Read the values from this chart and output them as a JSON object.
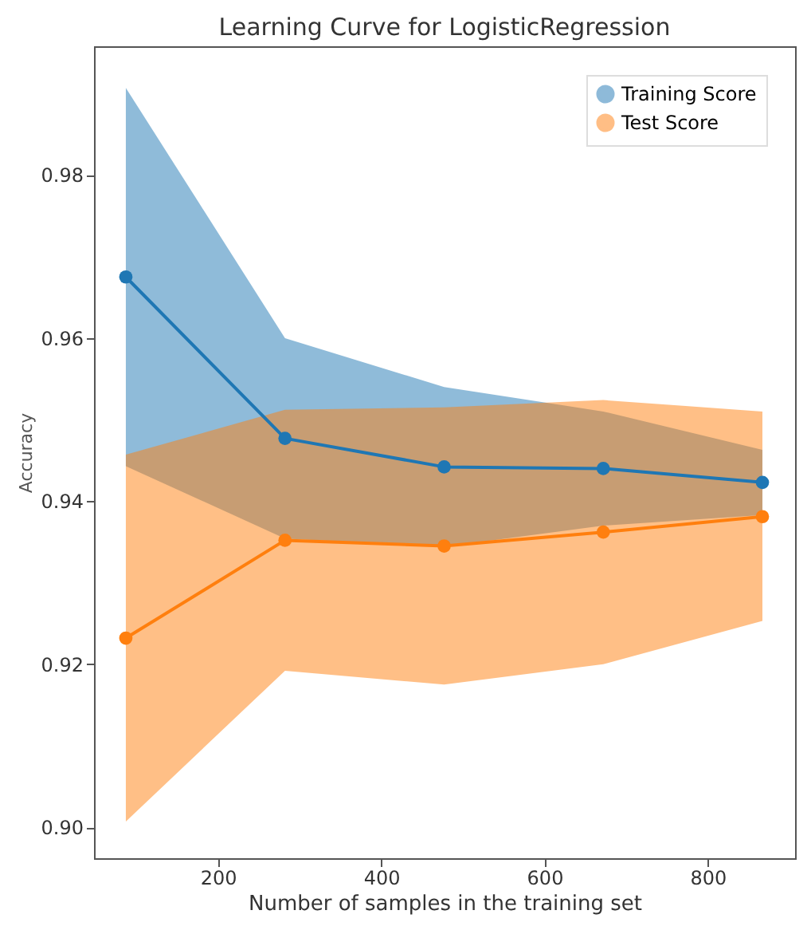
{
  "chart_data": {
    "type": "line",
    "title": "Learning Curve for LogisticRegression",
    "xlabel": "Number of samples in the training set",
    "ylabel": "Accuracy",
    "x": [
      87,
      282,
      477,
      672,
      867
    ],
    "series": [
      {
        "name": "Training Score",
        "color": "#1f77b4",
        "values": [
          0.9675,
          0.9477,
          0.9442,
          0.944,
          0.9423
        ],
        "lower": [
          0.9443,
          0.9354,
          0.9344,
          0.937,
          0.9383
        ],
        "upper": [
          0.9907,
          0.96,
          0.954,
          0.951,
          0.9463
        ]
      },
      {
        "name": "Test Score",
        "color": "#ff7f0e",
        "values": [
          0.9232,
          0.9352,
          0.9345,
          0.9362,
          0.9381
        ],
        "lower": [
          0.9007,
          0.9192,
          0.9175,
          0.92,
          0.9253
        ],
        "upper": [
          0.9457,
          0.9512,
          0.9515,
          0.9524,
          0.951
        ]
      }
    ],
    "xlim": [
      48,
      907
    ],
    "xticks": [
      200,
      400,
      600,
      800
    ],
    "ylim": [
      0.8962,
      0.9958
    ],
    "yticks": [
      {
        "value": 0.9,
        "label": "0.90"
      },
      {
        "value": 0.92,
        "label": "0.92"
      },
      {
        "value": 0.94,
        "label": "0.94"
      },
      {
        "value": 0.96,
        "label": "0.96"
      },
      {
        "value": 0.98,
        "label": "0.98"
      }
    ],
    "marker": "circle",
    "line_style": "solid",
    "legend": "top right",
    "grid": false
  }
}
